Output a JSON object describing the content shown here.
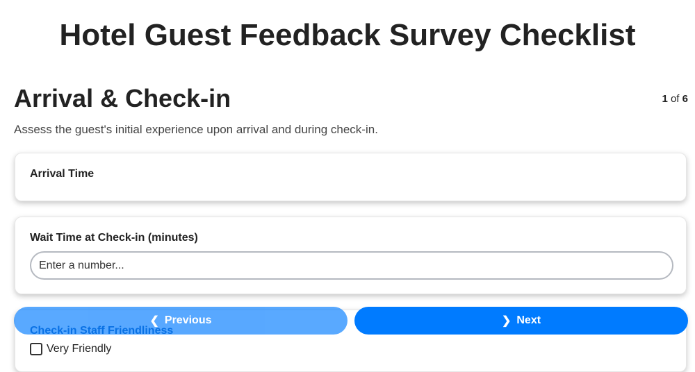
{
  "title": "Hotel Guest Feedback Survey Checklist",
  "section": {
    "title": "Arrival & Check-in",
    "description": "Assess the guest's initial experience upon arrival and during check-in.",
    "page_current": "1",
    "page_of": "of",
    "page_total": "6"
  },
  "fields": [
    {
      "label": "Arrival Time"
    },
    {
      "label": "Wait Time at Check-in (minutes)",
      "placeholder": "Enter a number..."
    },
    {
      "label": "Check-in Staff Friendliness",
      "options": [
        "Very Friendly"
      ]
    }
  ],
  "nav": {
    "previous": "Previous",
    "next": "Next"
  },
  "colors": {
    "accent": "#007bff"
  }
}
